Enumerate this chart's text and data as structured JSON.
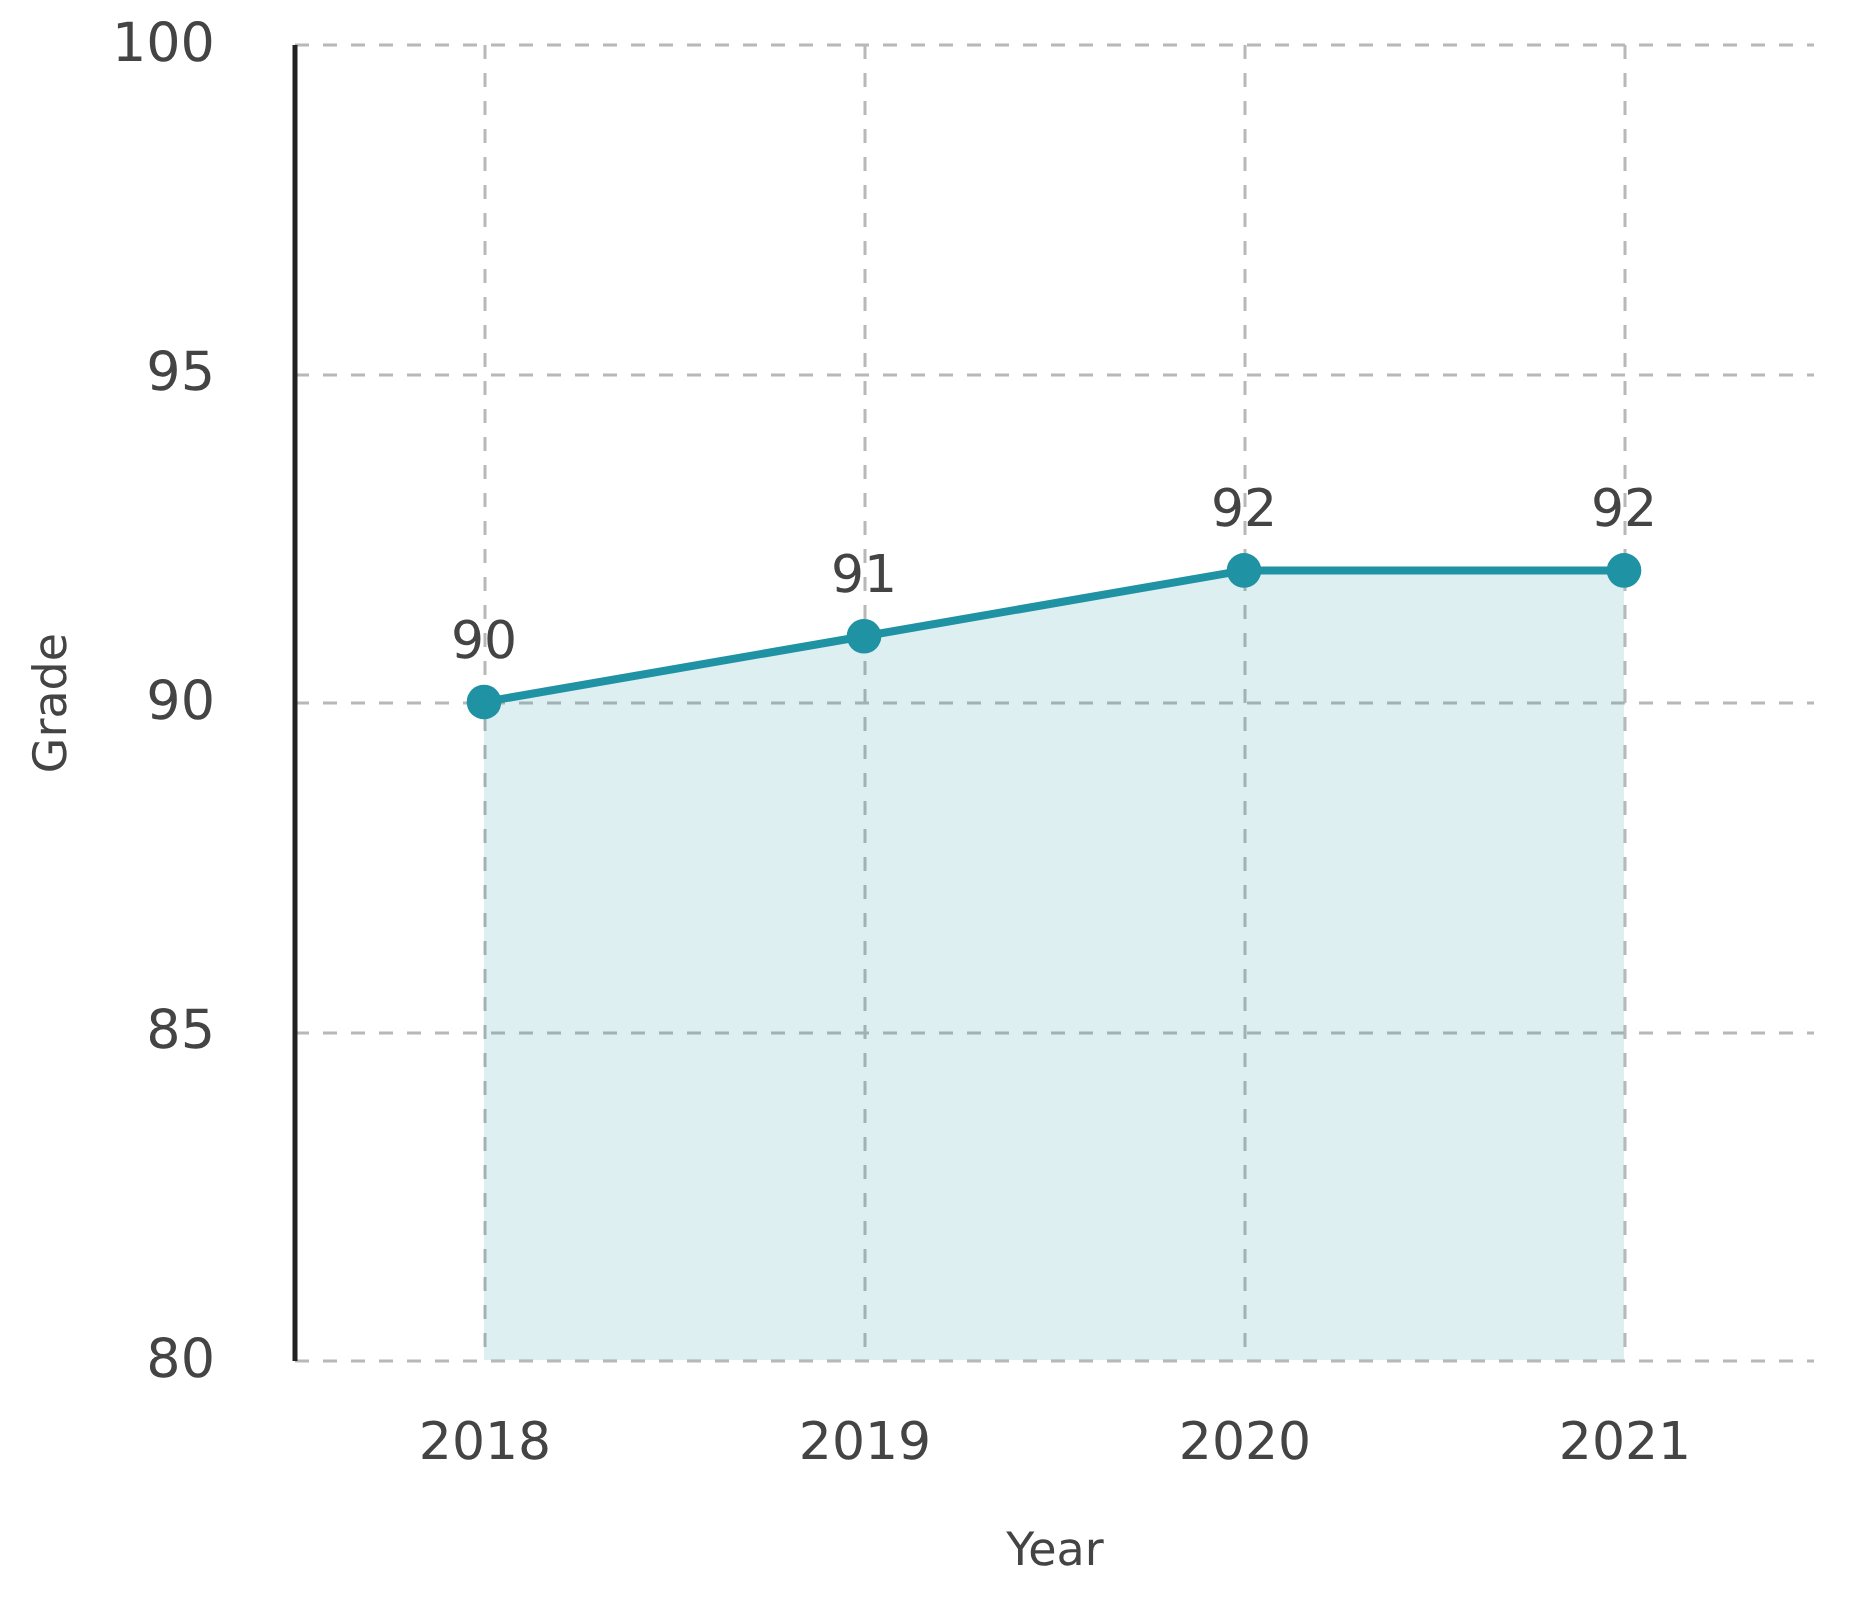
{
  "chart_data": {
    "type": "area",
    "xlabel": "Year",
    "ylabel": "Grade",
    "categories": [
      "2018",
      "2019",
      "2020",
      "2021"
    ],
    "values": [
      90,
      91,
      92,
      92
    ],
    "color": "#1f93a3",
    "ylim": [
      80,
      100
    ],
    "yticks": [
      80,
      85,
      90,
      95,
      100
    ],
    "grid": true,
    "marker": "circle",
    "line_style": "solid",
    "data_labels": true
  }
}
